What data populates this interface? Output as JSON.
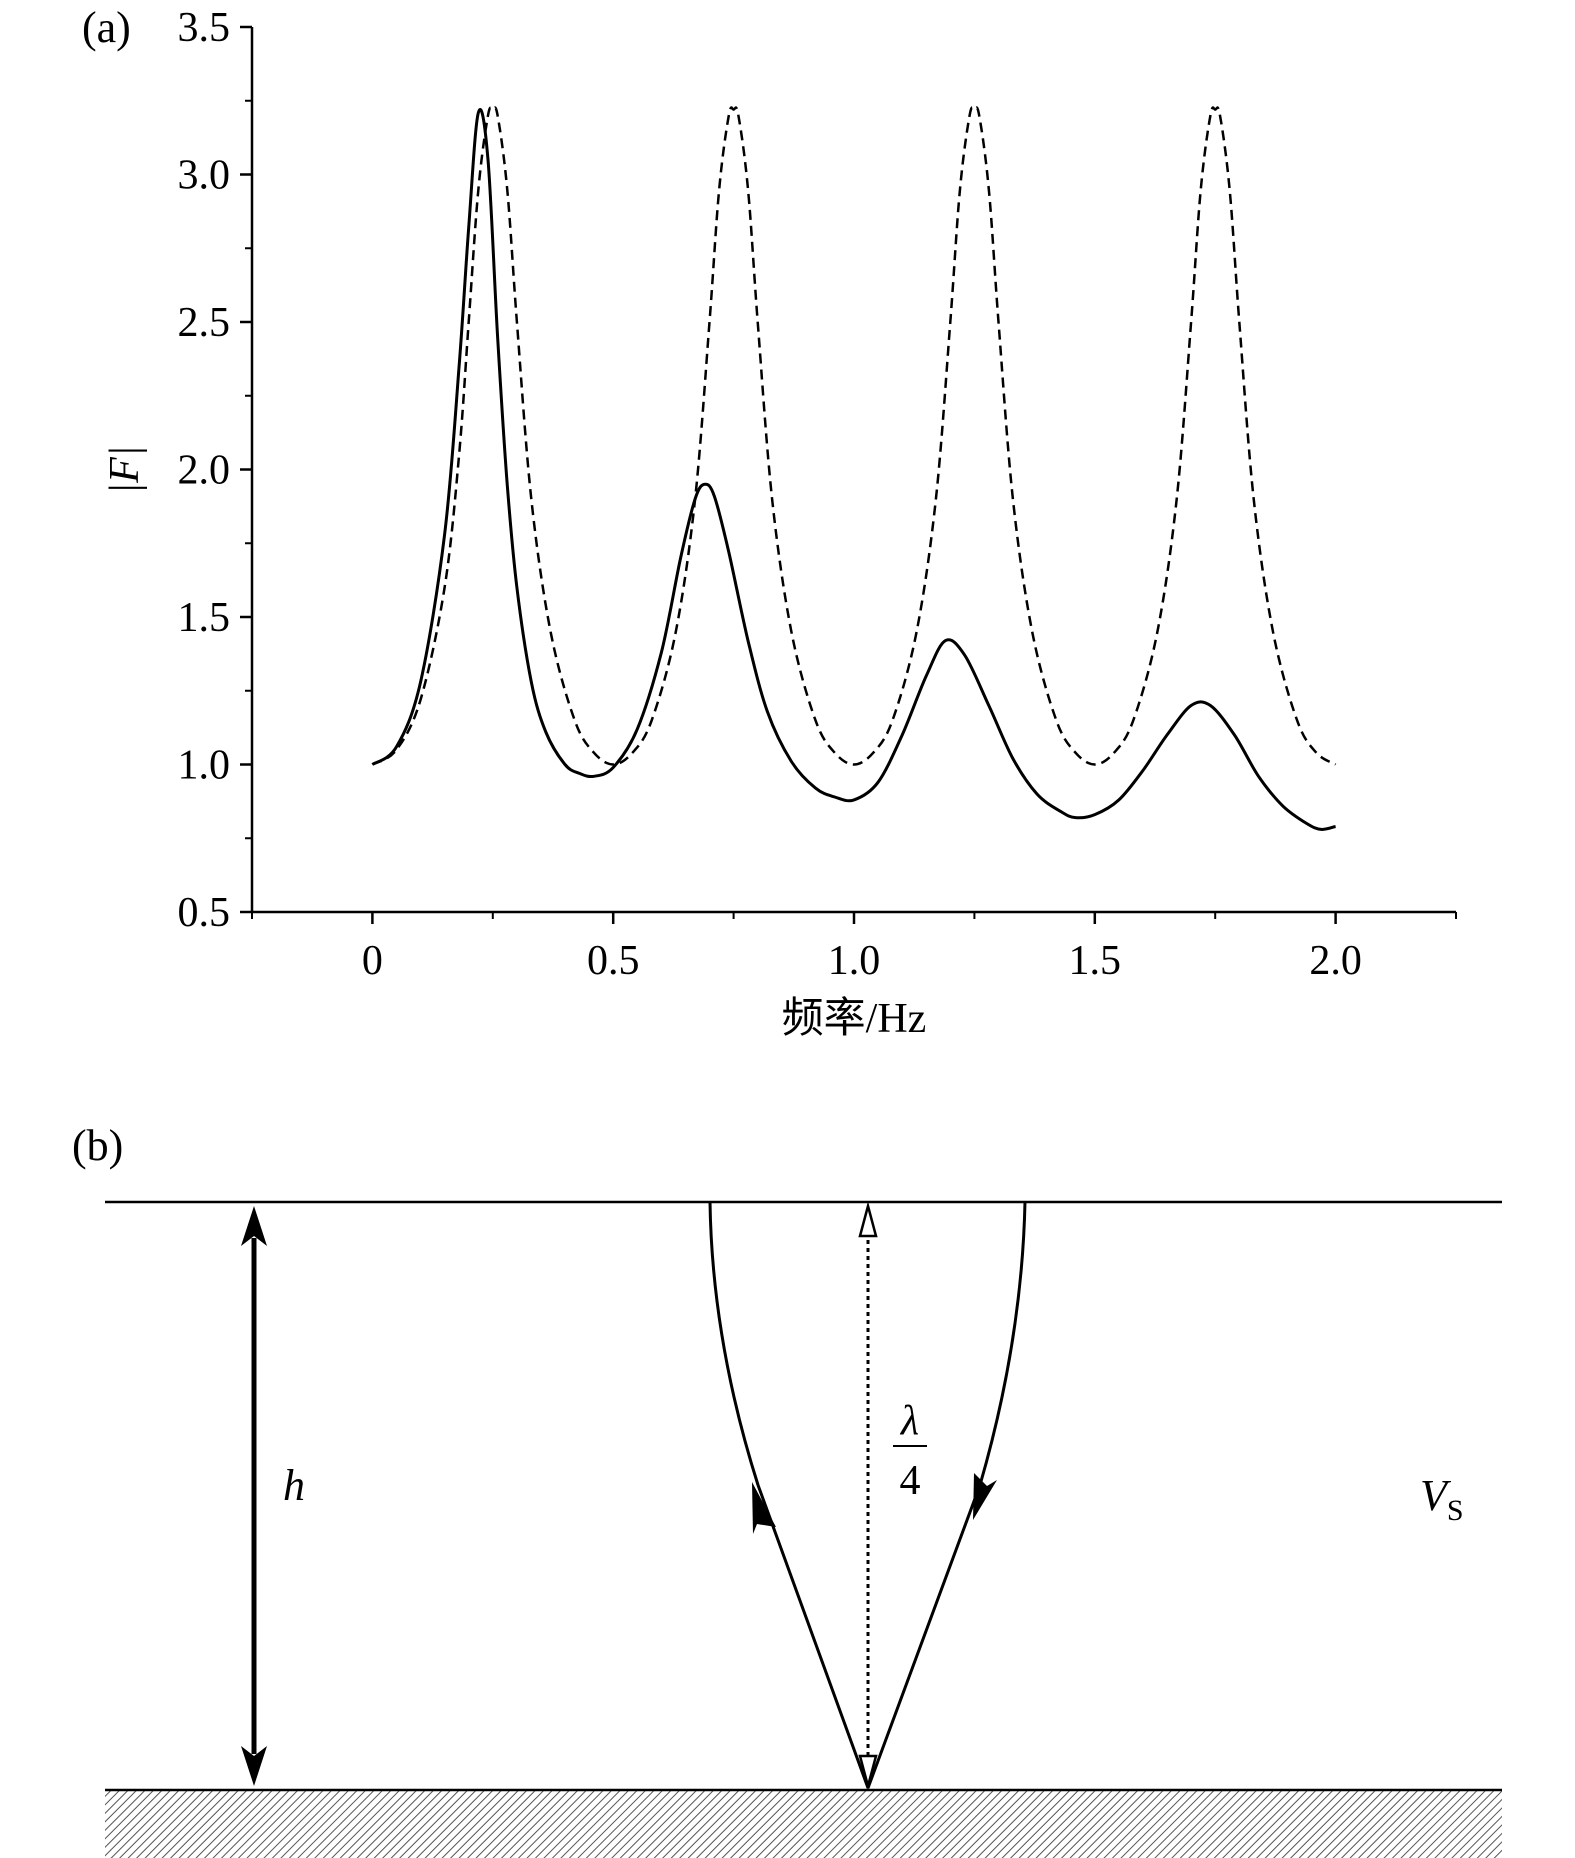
{
  "chart_data": {
    "type": "line",
    "panel_label": "(a)",
    "title": "",
    "xlabel": "频率/Hz",
    "ylabel": "|F|",
    "xlim": [
      -0.25,
      2.25
    ],
    "ylim": [
      0.5,
      3.5
    ],
    "x_ticks": [
      0,
      0.5,
      1.0,
      1.5,
      2.0
    ],
    "x_tick_labels": [
      "0",
      "0.5",
      "1.0",
      "1.5",
      "2.0"
    ],
    "y_ticks": [
      0.5,
      1.0,
      1.5,
      2.0,
      2.5,
      3.0,
      3.5
    ],
    "y_tick_labels": [
      "0.5",
      "1.0",
      "1.5",
      "2.0",
      "2.5",
      "3.0",
      "3.5"
    ],
    "grid": false,
    "legend": "none",
    "series": [
      {
        "style": "solid",
        "color": "#000000",
        "x": [
          0,
          0.05,
          0.1,
          0.15,
          0.18,
          0.2,
          0.22,
          0.24,
          0.26,
          0.28,
          0.3,
          0.33,
          0.36,
          0.4,
          0.43,
          0.46,
          0.5,
          0.55,
          0.6,
          0.64,
          0.67,
          0.69,
          0.71,
          0.74,
          0.78,
          0.82,
          0.87,
          0.92,
          0.96,
          1.0,
          1.05,
          1.1,
          1.15,
          1.19,
          1.23,
          1.28,
          1.33,
          1.38,
          1.43,
          1.46,
          1.5,
          1.55,
          1.6,
          1.65,
          1.7,
          1.74,
          1.79,
          1.84,
          1.89,
          1.94,
          1.97,
          2.0
        ],
        "y": [
          1.0,
          1.06,
          1.28,
          1.78,
          2.35,
          2.82,
          3.21,
          3.05,
          2.45,
          1.95,
          1.6,
          1.28,
          1.11,
          1.0,
          0.97,
          0.96,
          0.99,
          1.12,
          1.38,
          1.7,
          1.9,
          1.95,
          1.91,
          1.72,
          1.42,
          1.18,
          1.01,
          0.92,
          0.89,
          0.88,
          0.94,
          1.1,
          1.3,
          1.42,
          1.37,
          1.2,
          1.02,
          0.9,
          0.84,
          0.82,
          0.83,
          0.88,
          0.98,
          1.1,
          1.2,
          1.2,
          1.1,
          0.96,
          0.86,
          0.8,
          0.78,
          0.79
        ]
      },
      {
        "style": "dashed",
        "color": "#000000",
        "x": [
          0,
          0.05,
          0.1,
          0.15,
          0.18,
          0.2,
          0.22,
          0.24,
          0.25,
          0.26,
          0.28,
          0.3,
          0.33,
          0.37,
          0.42,
          0.46,
          0.5,
          0.54,
          0.58,
          0.63,
          0.67,
          0.7,
          0.72,
          0.74,
          0.75,
          0.76,
          0.78,
          0.8,
          0.83,
          0.87,
          0.92,
          0.96,
          1.0,
          1.04,
          1.08,
          1.13,
          1.17,
          1.2,
          1.22,
          1.24,
          1.25,
          1.26,
          1.28,
          1.3,
          1.33,
          1.37,
          1.42,
          1.46,
          1.5,
          1.54,
          1.58,
          1.63,
          1.67,
          1.7,
          1.72,
          1.74,
          1.75,
          1.76,
          1.78,
          1.8,
          1.83,
          1.87,
          1.92,
          1.96,
          2.0
        ],
        "y": [
          1.0,
          1.05,
          1.22,
          1.6,
          2.05,
          2.5,
          2.95,
          3.2,
          3.22,
          3.2,
          2.95,
          2.5,
          1.9,
          1.45,
          1.15,
          1.04,
          1.0,
          1.04,
          1.15,
          1.45,
          1.9,
          2.5,
          2.95,
          3.2,
          3.22,
          3.2,
          2.95,
          2.5,
          1.9,
          1.45,
          1.15,
          1.04,
          1.0,
          1.04,
          1.15,
          1.45,
          1.9,
          2.5,
          2.95,
          3.2,
          3.22,
          3.2,
          2.95,
          2.5,
          1.9,
          1.45,
          1.15,
          1.04,
          1.0,
          1.04,
          1.15,
          1.45,
          1.9,
          2.5,
          2.95,
          3.2,
          3.22,
          3.2,
          2.95,
          2.5,
          1.9,
          1.45,
          1.15,
          1.04,
          1.0
        ]
      }
    ]
  },
  "diagram": {
    "panel_label": "(b)",
    "thickness_label": "h",
    "wavelength_numerator": "λ",
    "wavelength_denominator": "4",
    "velocity_label": "V",
    "velocity_subscript": "S"
  }
}
